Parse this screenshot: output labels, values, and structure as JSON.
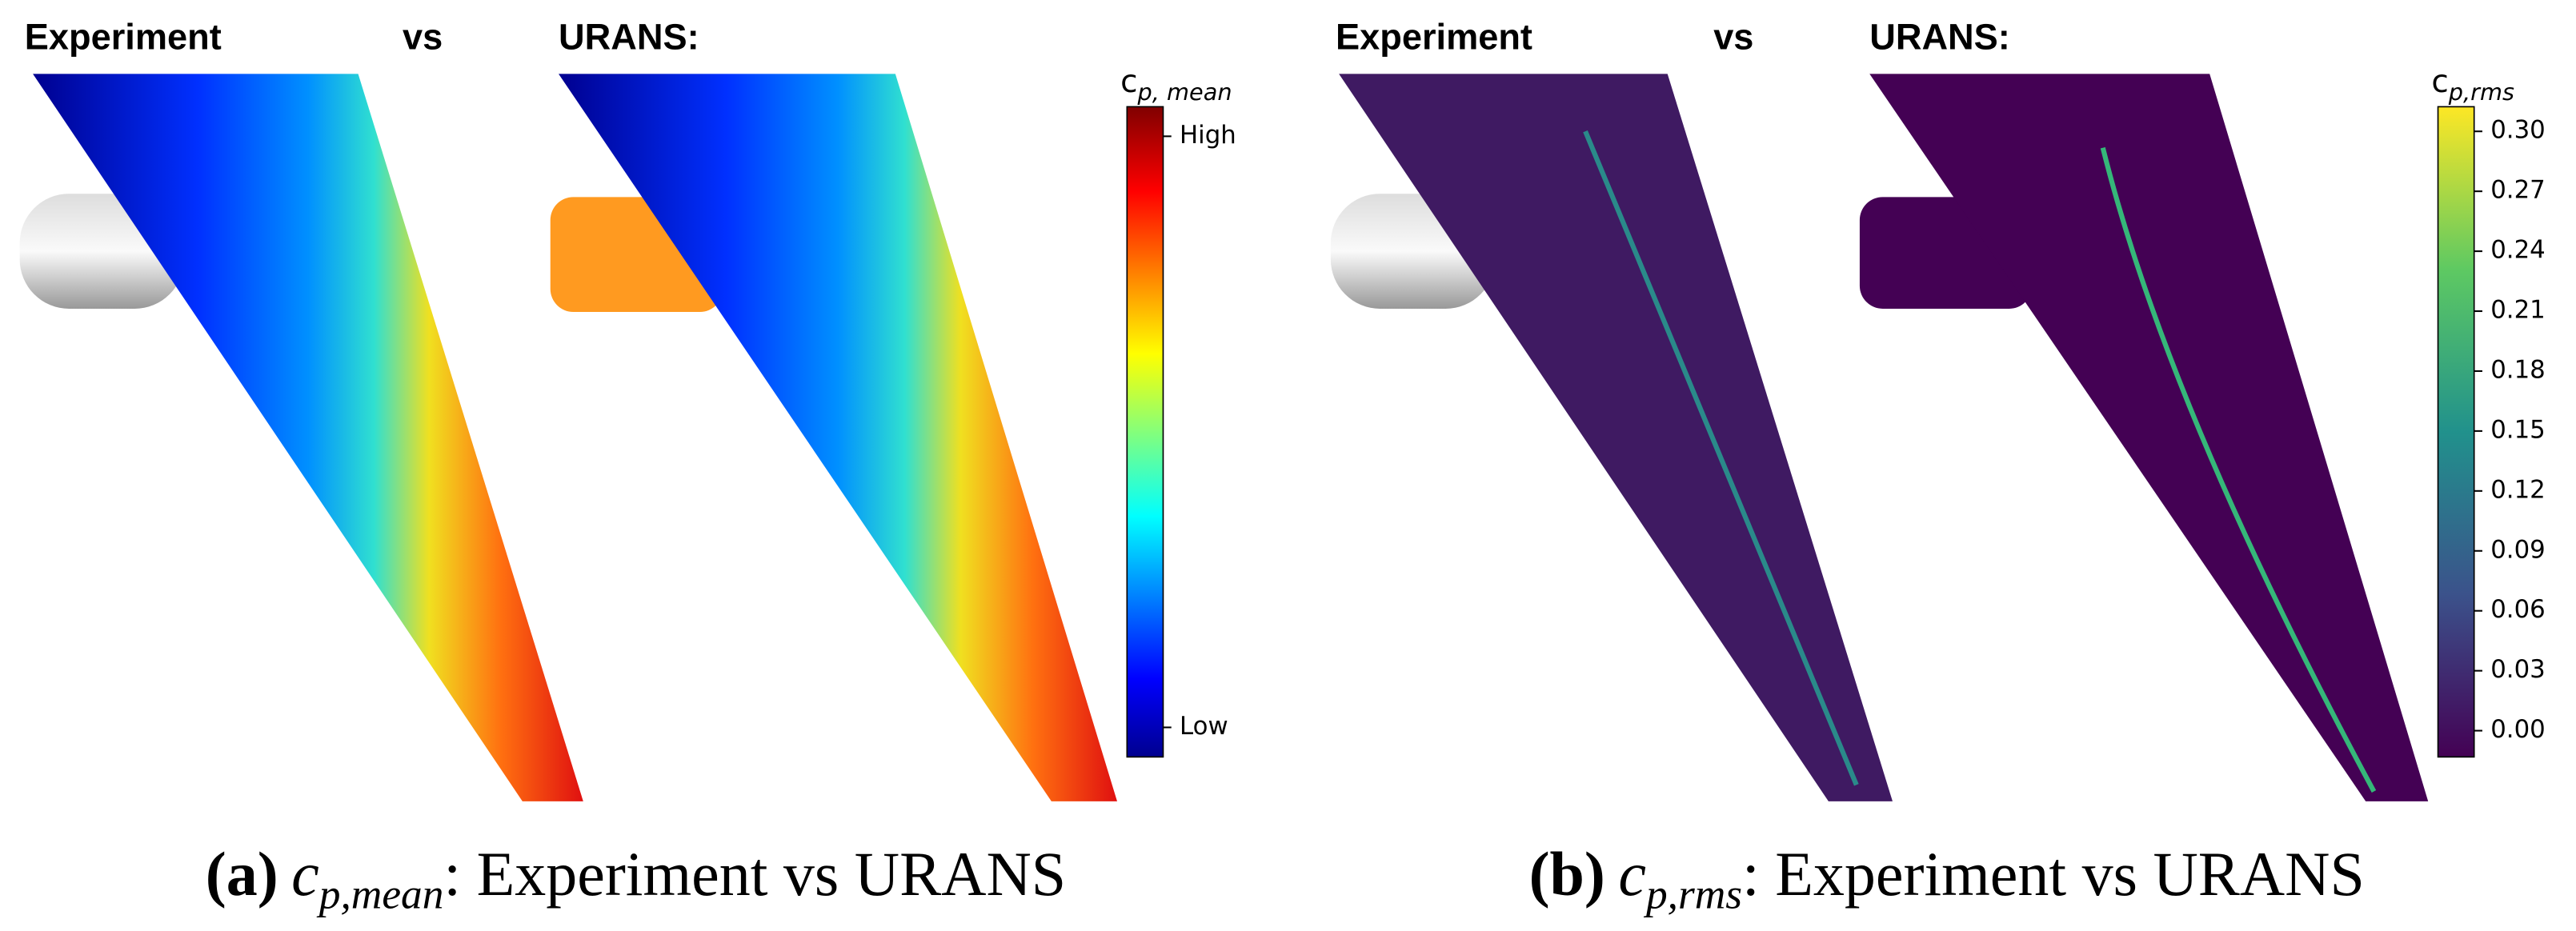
{
  "panels": [
    {
      "headings": [
        "Experiment",
        "vs",
        "URANS:"
      ],
      "colorbar": {
        "symbol": "c",
        "subscript": "p, mean",
        "ticks": [
          "High",
          "Low"
        ]
      },
      "caption": {
        "tag": "(a)",
        "symbol": "c",
        "subscript": "p,mean",
        "text": ": Experiment vs URANS"
      }
    },
    {
      "headings": [
        "Experiment",
        "vs",
        "URANS:"
      ],
      "colorbar": {
        "symbol": "c",
        "subscript": "p,rms",
        "ticks": [
          "0.30",
          "0.27",
          "0.24",
          "0.21",
          "0.18",
          "0.15",
          "0.12",
          "0.09",
          "0.06",
          "0.03",
          "0.00"
        ]
      },
      "caption": {
        "tag": "(b)",
        "symbol": "c",
        "subscript": "p,rms",
        "text": ": Experiment vs URANS"
      }
    }
  ]
}
